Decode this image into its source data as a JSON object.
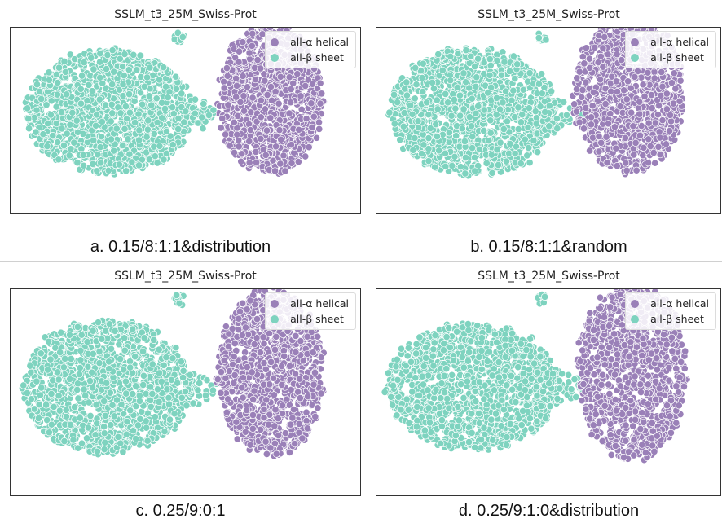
{
  "colors": {
    "alpha": "#9a80b8",
    "beta": "#7ed3bf",
    "edge": "#ffffff"
  },
  "chart_data": [
    {
      "type": "scatter",
      "title": "SSLM_t3_25M_Swiss-Prot",
      "caption": "a. 0.15/8:1:1&distribution",
      "legend_position": "top-right",
      "grid": false,
      "series": [
        {
          "name": "all-α helical",
          "color": "#9a80b8",
          "clusters": [
            {
              "x": 0.74,
              "y": 0.38,
              "rx": 0.15,
              "ry": 0.4,
              "n": 1150
            }
          ]
        },
        {
          "name": "all-β sheet",
          "color": "#7ed3bf",
          "clusters": [
            {
              "x": 0.28,
              "y": 0.45,
              "rx": 0.24,
              "ry": 0.33,
              "n": 1450
            },
            {
              "x": 0.5,
              "y": 0.47,
              "rx": 0.09,
              "ry": 0.09,
              "n": 60
            },
            {
              "x": 0.48,
              "y": 0.05,
              "rx": 0.015,
              "ry": 0.03,
              "n": 12
            }
          ]
        }
      ]
    },
    {
      "type": "scatter",
      "title": "SSLM_t3_25M_Swiss-Prot",
      "caption": "b. 0.15/8:1:1&random",
      "legend_position": "top-right",
      "grid": false,
      "series": [
        {
          "name": "all-α helical",
          "color": "#9a80b8",
          "clusters": [
            {
              "x": 0.73,
              "y": 0.36,
              "rx": 0.16,
              "ry": 0.42,
              "n": 1150
            }
          ]
        },
        {
          "name": "all-β sheet",
          "color": "#7ed3bf",
          "clusters": [
            {
              "x": 0.28,
              "y": 0.45,
              "rx": 0.24,
              "ry": 0.34,
              "n": 1450
            },
            {
              "x": 0.5,
              "y": 0.47,
              "rx": 0.1,
              "ry": 0.09,
              "n": 60
            },
            {
              "x": 0.48,
              "y": 0.05,
              "rx": 0.015,
              "ry": 0.03,
              "n": 12
            }
          ]
        }
      ]
    },
    {
      "type": "scatter",
      "title": "SSLM_t3_25M_Swiss-Prot",
      "caption": "c. 0.25/9:0:1",
      "legend_position": "top-right",
      "grid": false,
      "series": [
        {
          "name": "all-α helical",
          "color": "#9a80b8",
          "clusters": [
            {
              "x": 0.74,
              "y": 0.4,
              "rx": 0.15,
              "ry": 0.4,
              "n": 1150
            }
          ]
        },
        {
          "name": "all-β sheet",
          "color": "#7ed3bf",
          "clusters": [
            {
              "x": 0.27,
              "y": 0.47,
              "rx": 0.24,
              "ry": 0.32,
              "n": 1450
            },
            {
              "x": 0.5,
              "y": 0.47,
              "rx": 0.09,
              "ry": 0.09,
              "n": 60
            },
            {
              "x": 0.48,
              "y": 0.05,
              "rx": 0.015,
              "ry": 0.03,
              "n": 12
            }
          ]
        }
      ]
    },
    {
      "type": "scatter",
      "title": "SSLM_t3_25M_Swiss-Prot",
      "caption": "d. 0.25/9:1:0&distribution",
      "legend_position": "top-right",
      "grid": false,
      "series": [
        {
          "name": "all-α helical",
          "color": "#9a80b8",
          "clusters": [
            {
              "x": 0.74,
              "y": 0.4,
              "rx": 0.16,
              "ry": 0.42,
              "n": 1150
            }
          ]
        },
        {
          "name": "all-β sheet",
          "color": "#7ed3bf",
          "clusters": [
            {
              "x": 0.28,
              "y": 0.47,
              "rx": 0.25,
              "ry": 0.3,
              "n": 1450
            },
            {
              "x": 0.51,
              "y": 0.47,
              "rx": 0.09,
              "ry": 0.08,
              "n": 60
            },
            {
              "x": 0.48,
              "y": 0.05,
              "rx": 0.015,
              "ry": 0.03,
              "n": 12
            }
          ]
        }
      ]
    }
  ]
}
